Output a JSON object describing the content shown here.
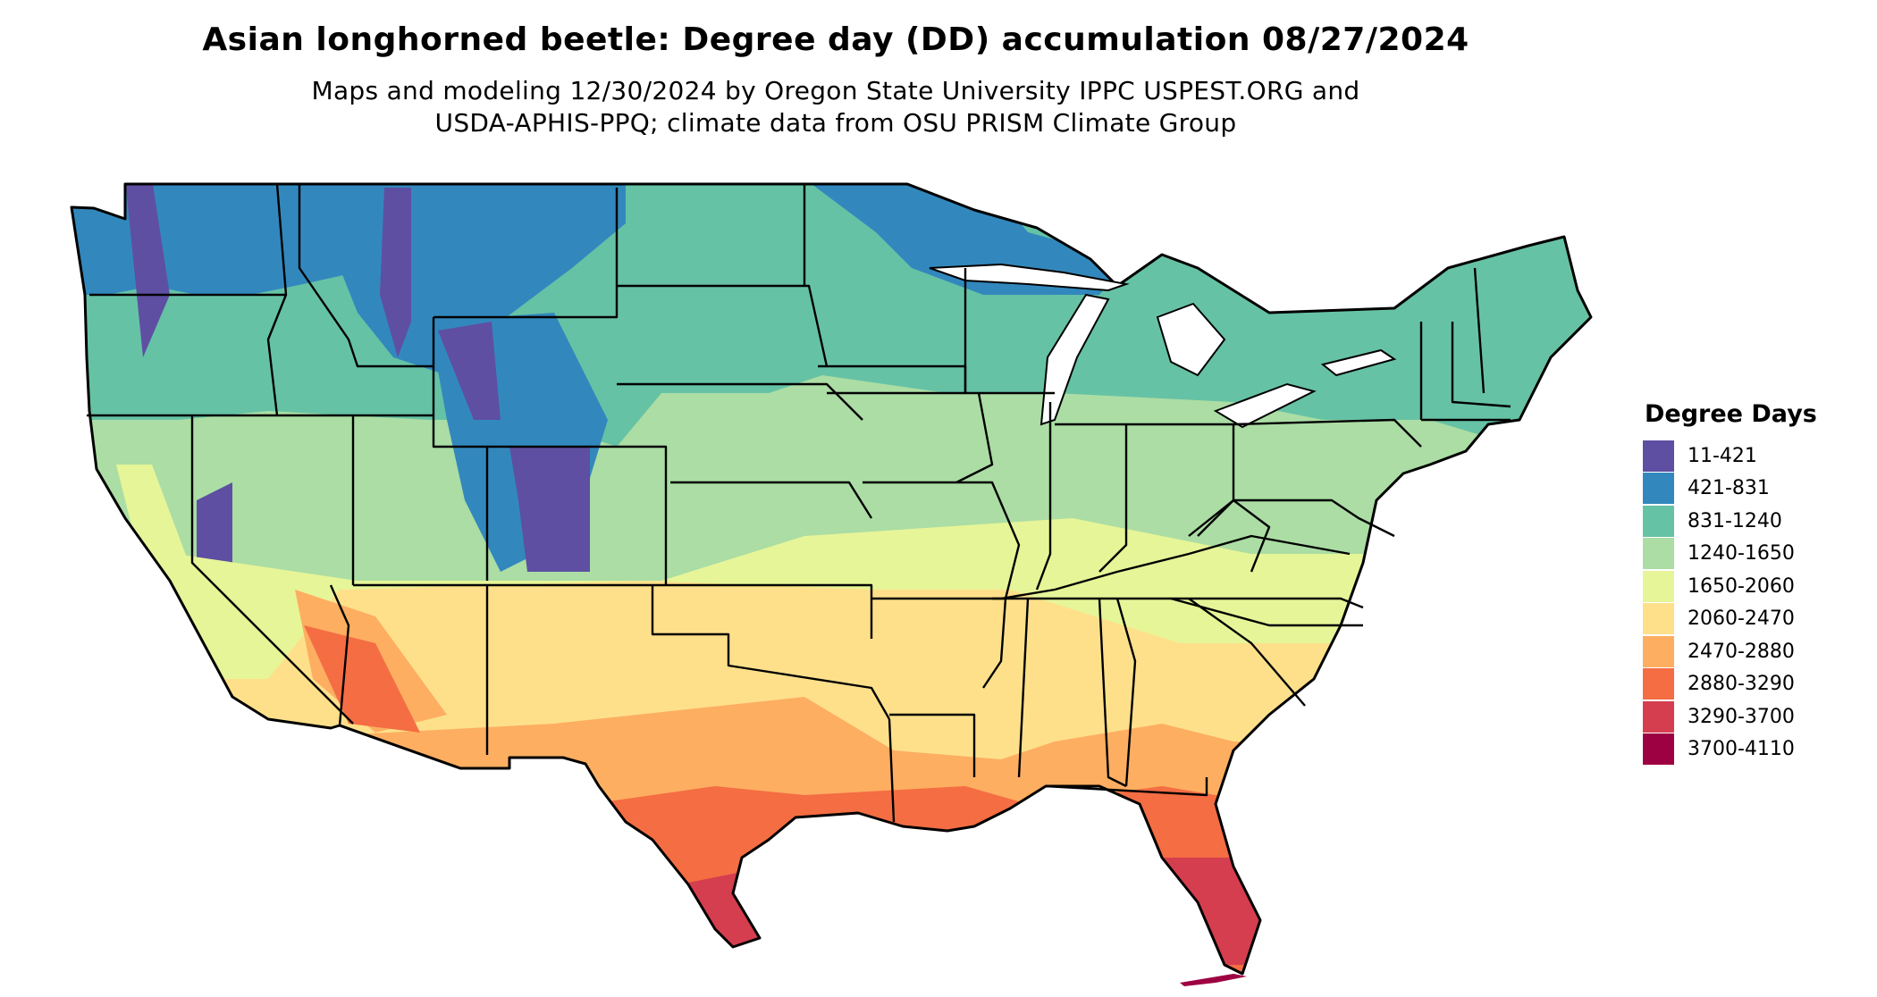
{
  "map": {
    "title": "Asian longhorned beetle: Degree day (DD) accumulation 08/27/2024",
    "subtitle_lines": [
      "Maps and modeling 12/30/2024 by Oregon State University IPPC USPEST.ORG and",
      "USDA-APHIS-PPQ; climate data from OSU PRISM Climate Group"
    ]
  },
  "legend": {
    "title": "Degree Days",
    "items": [
      {
        "label": "11-421",
        "color": "#5e4fa2"
      },
      {
        "label": "421-831",
        "color": "#3288bd"
      },
      {
        "label": "831-1240",
        "color": "#66c2a5"
      },
      {
        "label": "1240-1650",
        "color": "#abdda4"
      },
      {
        "label": "1650-2060",
        "color": "#e6f598"
      },
      {
        "label": "2060-2470",
        "color": "#fee08b"
      },
      {
        "label": "2470-2880",
        "color": "#fdae61"
      },
      {
        "label": "2880-3290",
        "color": "#f46d43"
      },
      {
        "label": "3290-3700",
        "color": "#d53e4f"
      },
      {
        "label": "3700-4110",
        "color": "#9e0142"
      }
    ]
  }
}
